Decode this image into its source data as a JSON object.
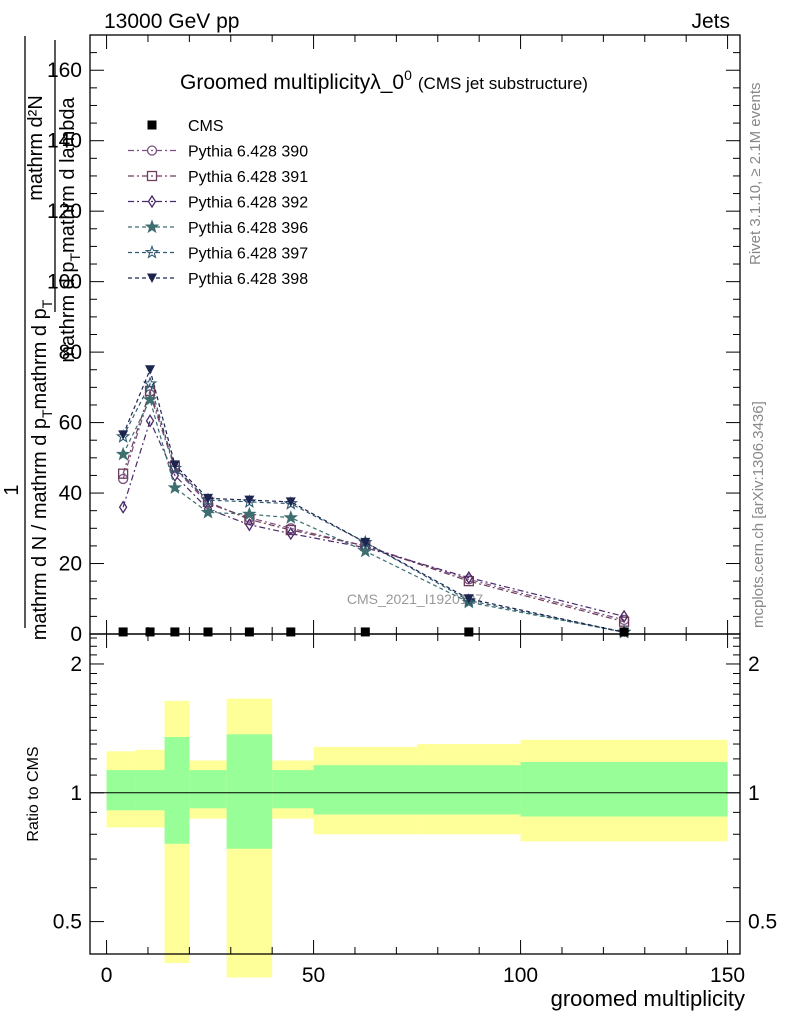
{
  "header": {
    "left": "13000 GeV pp",
    "right": "Jets"
  },
  "title": {
    "main": "Groomed multiplicityλ_0",
    "sup": "0",
    "sub": "(CMS jet substructure)"
  },
  "side_labels": {
    "rivet": "Rivet 3.1.10, ≥ 2.1M events",
    "mcplots": "mcplots.cern.ch [arXiv:1306.3436]"
  },
  "watermark": "CMS_2021_I1920187",
  "y_label_main": {
    "numerator": "mathrm d²N",
    "denominator": "mathrm d p",
    "denominator_sub": "T",
    "denominator_rest": "mathrm d lambda",
    "prefactor_num": "1",
    "prefactor_den": "mathrm d N / mathrm d p",
    "prefactor_den_sub": "T",
    "prefactor_den_rest": "mathrm d p",
    "prefactor_den_sub2": "T"
  },
  "ratio_ylabel": "Ratio to CMS",
  "xlabel": "groomed multiplicity",
  "legend": [
    {
      "name": "CMS",
      "marker": "filled-square",
      "color": "#000000",
      "dash": ""
    },
    {
      "name": "Pythia 6.428 390",
      "marker": "open-circle",
      "color": "#7a4f80",
      "dash": "6,3,2,3"
    },
    {
      "name": "Pythia 6.428 391",
      "marker": "open-square",
      "color": "#6e3c5c",
      "dash": "6,3,2,3"
    },
    {
      "name": "Pythia 6.428 392",
      "marker": "open-diamond",
      "color": "#4a2a6a",
      "dash": "6,3,2,3"
    },
    {
      "name": "Pythia 6.428 396",
      "marker": "filled-star",
      "color": "#3e6e70",
      "dash": "4,3"
    },
    {
      "name": "Pythia 6.428 397",
      "marker": "open-star",
      "color": "#2f5a70",
      "dash": "4,3"
    },
    {
      "name": "Pythia 6.428 398",
      "marker": "filled-triangle-down",
      "color": "#1c2450",
      "dash": "4,3"
    }
  ],
  "chart_data": {
    "type": "line",
    "xlabel": "groomed multiplicity",
    "ylabel": "1 / (mathrm d N / mathrm d p_T mathrm d p_T) · mathrm d²N / (mathrm d p_T mathrm d lambda)",
    "xlim": [
      -4,
      153
    ],
    "ylim_main": [
      0,
      170
    ],
    "main_yticks": [
      0,
      20,
      40,
      60,
      80,
      100,
      120,
      140,
      160
    ],
    "ratio_ylim": [
      0.42,
      2.35
    ],
    "ratio_yticks": [
      0.5,
      1,
      2
    ],
    "xticks": [
      0,
      50,
      100,
      150
    ],
    "x": [
      4,
      10.5,
      16.5,
      24.5,
      34.5,
      44.5,
      62.5,
      87.5,
      125
    ],
    "cms": [
      0.3,
      0.3,
      0.3,
      0.3,
      0.3,
      0.3,
      0.3,
      0.3,
      0.3
    ],
    "series": [
      {
        "name": "Pythia 6.428 390",
        "values": [
          44,
          68,
          47,
          37,
          33,
          30,
          25,
          15.5,
          4
        ]
      },
      {
        "name": "Pythia 6.428 391",
        "values": [
          45.5,
          69,
          47.5,
          37.5,
          32.5,
          29.5,
          25,
          15,
          3.5
        ]
      },
      {
        "name": "Pythia 6.428 392",
        "values": [
          36,
          60.5,
          45,
          35.5,
          31,
          28.5,
          24.5,
          16,
          5
        ]
      },
      {
        "name": "Pythia 6.428 396",
        "values": [
          51,
          66.5,
          41.5,
          34.5,
          34,
          33,
          23.5,
          9,
          0.5
        ]
      },
      {
        "name": "Pythia 6.428 397",
        "values": [
          56,
          71,
          47,
          38,
          37.5,
          37,
          26,
          9.5,
          0.5
        ]
      },
      {
        "name": "Pythia 6.428 398",
        "values": [
          56.5,
          75,
          48,
          38.5,
          38,
          37.5,
          26,
          10,
          0.5
        ]
      }
    ],
    "ratio_bands": {
      "edges": [
        0,
        7,
        14,
        20,
        29,
        40,
        50,
        75,
        100,
        150
      ],
      "yellow_lo": [
        0.83,
        0.83,
        0.4,
        0.87,
        0.37,
        0.87,
        0.8,
        0.8,
        0.77
      ],
      "yellow_hi": [
        1.25,
        1.26,
        1.64,
        1.19,
        1.66,
        1.19,
        1.28,
        1.3,
        1.33
      ],
      "green_lo": [
        0.91,
        0.91,
        0.76,
        0.92,
        0.74,
        0.92,
        0.89,
        0.89,
        0.88
      ],
      "green_hi": [
        1.13,
        1.13,
        1.35,
        1.13,
        1.37,
        1.13,
        1.16,
        1.16,
        1.18
      ]
    },
    "colors": {
      "yellow": "#ffff9a",
      "green": "#98ff98"
    }
  }
}
